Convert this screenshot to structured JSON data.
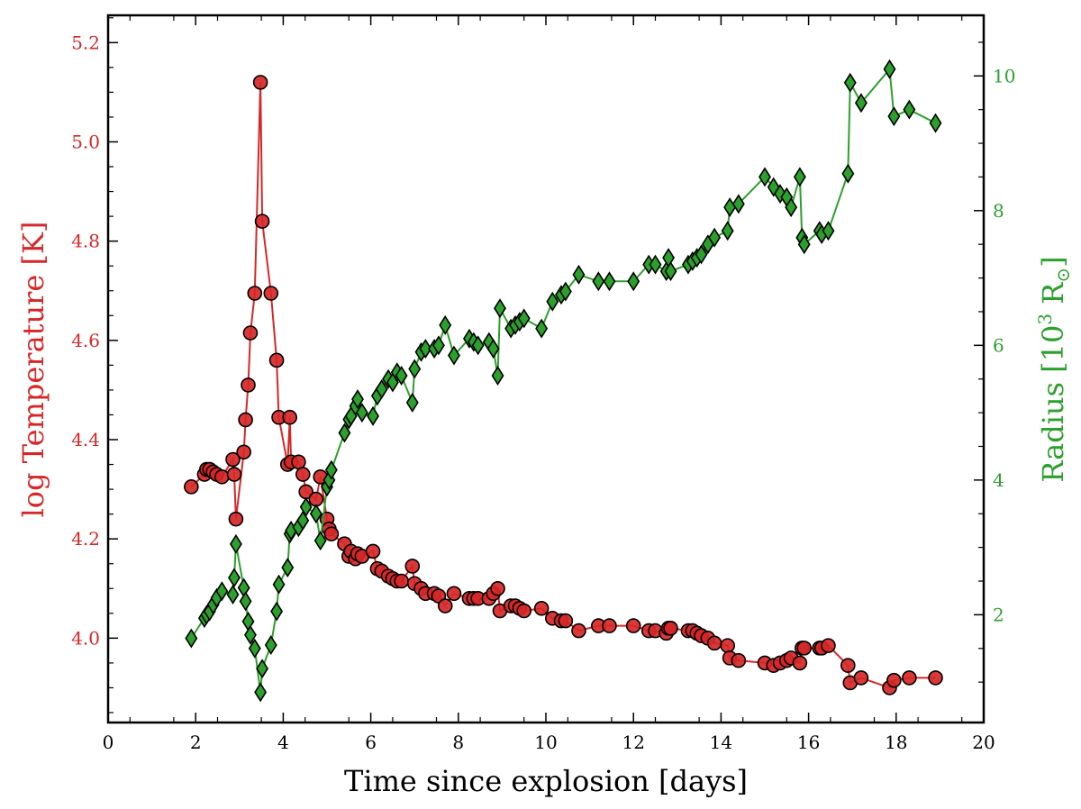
{
  "chart_data": {
    "type": "line",
    "xlabel": "Time since explosion [days]",
    "ylabel_left": "log Temperature [K]",
    "ylabel_right": "Radius [10",
    "ylabel_right_sup": "3",
    "ylabel_right_unit": " R",
    "ylabel_right_sub": "⊙",
    "ylabel_right_close": "]",
    "xlim": [
      0,
      20
    ],
    "ylim_left": [
      3.83,
      5.255
    ],
    "ylim_right": [
      0.4,
      10.9
    ],
    "xticks": [
      "0",
      "2",
      "4",
      "6",
      "8",
      "10",
      "12",
      "14",
      "16",
      "18",
      "20"
    ],
    "yticks_left": [
      "4.0",
      "4.2",
      "4.4",
      "4.6",
      "4.8",
      "5.0",
      "5.2"
    ],
    "yticks_right": [
      "2",
      "4",
      "6",
      "8",
      "10"
    ],
    "colors": {
      "temperature": "#d62728",
      "temperature_left_label": "#d62728",
      "radius": "#2ca02c",
      "radius_label": "#2ca02c",
      "edge": "#000000"
    },
    "series": [
      {
        "name": "Temperature",
        "axis": "left",
        "marker": "circle",
        "points": [
          [
            1.9,
            4.305
          ],
          [
            2.2,
            4.33
          ],
          [
            2.25,
            4.34
          ],
          [
            2.32,
            4.34
          ],
          [
            2.4,
            4.335
          ],
          [
            2.48,
            4.33
          ],
          [
            2.6,
            4.325
          ],
          [
            2.85,
            4.36
          ],
          [
            2.88,
            4.33
          ],
          [
            2.92,
            4.24
          ],
          [
            3.1,
            4.375
          ],
          [
            3.14,
            4.44
          ],
          [
            3.2,
            4.51
          ],
          [
            3.25,
            4.615
          ],
          [
            3.35,
            4.695
          ],
          [
            3.48,
            5.12
          ],
          [
            3.52,
            4.84
          ],
          [
            3.72,
            4.695
          ],
          [
            3.85,
            4.56
          ],
          [
            3.9,
            4.445
          ],
          [
            4.1,
            4.35
          ],
          [
            4.15,
            4.445
          ],
          [
            4.18,
            4.355
          ],
          [
            4.35,
            4.355
          ],
          [
            4.45,
            4.33
          ],
          [
            4.52,
            4.295
          ],
          [
            4.75,
            4.28
          ],
          [
            4.85,
            4.325
          ],
          [
            5.0,
            4.24
          ],
          [
            5.05,
            4.22
          ],
          [
            5.1,
            4.21
          ],
          [
            5.4,
            4.19
          ],
          [
            5.5,
            4.165
          ],
          [
            5.55,
            4.175
          ],
          [
            5.65,
            4.16
          ],
          [
            5.7,
            4.17
          ],
          [
            5.8,
            4.165
          ],
          [
            6.05,
            4.175
          ],
          [
            6.15,
            4.14
          ],
          [
            6.25,
            4.135
          ],
          [
            6.4,
            4.125
          ],
          [
            6.5,
            4.12
          ],
          [
            6.6,
            4.115
          ],
          [
            6.7,
            4.115
          ],
          [
            6.95,
            4.145
          ],
          [
            7.0,
            4.11
          ],
          [
            7.15,
            4.1
          ],
          [
            7.25,
            4.09
          ],
          [
            7.45,
            4.09
          ],
          [
            7.55,
            4.085
          ],
          [
            7.7,
            4.065
          ],
          [
            7.9,
            4.09
          ],
          [
            8.25,
            4.08
          ],
          [
            8.35,
            4.08
          ],
          [
            8.45,
            4.08
          ],
          [
            8.7,
            4.08
          ],
          [
            8.8,
            4.09
          ],
          [
            8.9,
            4.1
          ],
          [
            8.95,
            4.055
          ],
          [
            9.2,
            4.065
          ],
          [
            9.3,
            4.065
          ],
          [
            9.4,
            4.06
          ],
          [
            9.5,
            4.055
          ],
          [
            9.9,
            4.06
          ],
          [
            10.15,
            4.04
          ],
          [
            10.35,
            4.035
          ],
          [
            10.45,
            4.035
          ],
          [
            10.75,
            4.015
          ],
          [
            11.2,
            4.025
          ],
          [
            11.45,
            4.025
          ],
          [
            12.0,
            4.025
          ],
          [
            12.35,
            4.015
          ],
          [
            12.5,
            4.015
          ],
          [
            12.75,
            4.01
          ],
          [
            12.8,
            4.02
          ],
          [
            12.85,
            4.02
          ],
          [
            13.25,
            4.015
          ],
          [
            13.35,
            4.015
          ],
          [
            13.45,
            4.01
          ],
          [
            13.55,
            4.005
          ],
          [
            13.7,
            4.0
          ],
          [
            13.85,
            3.99
          ],
          [
            14.15,
            3.985
          ],
          [
            14.2,
            3.96
          ],
          [
            14.4,
            3.955
          ],
          [
            15.0,
            3.95
          ],
          [
            15.2,
            3.945
          ],
          [
            15.35,
            3.95
          ],
          [
            15.5,
            3.955
          ],
          [
            15.6,
            3.96
          ],
          [
            15.8,
            3.95
          ],
          [
            15.85,
            3.98
          ],
          [
            15.9,
            3.98
          ],
          [
            16.25,
            3.98
          ],
          [
            16.3,
            3.98
          ],
          [
            16.45,
            3.985
          ],
          [
            16.9,
            3.945
          ],
          [
            16.95,
            3.91
          ],
          [
            17.2,
            3.92
          ],
          [
            17.85,
            3.9
          ],
          [
            17.95,
            3.915
          ],
          [
            18.3,
            3.92
          ],
          [
            18.9,
            3.92
          ]
        ]
      },
      {
        "name": "Radius",
        "axis": "right",
        "marker": "diamond",
        "points": [
          [
            1.9,
            1.65
          ],
          [
            2.2,
            1.95
          ],
          [
            2.25,
            2.0
          ],
          [
            2.32,
            2.05
          ],
          [
            2.4,
            2.15
          ],
          [
            2.48,
            2.25
          ],
          [
            2.6,
            2.35
          ],
          [
            2.85,
            2.3
          ],
          [
            2.88,
            2.55
          ],
          [
            2.92,
            3.05
          ],
          [
            3.1,
            2.4
          ],
          [
            3.14,
            2.2
          ],
          [
            3.2,
            1.9
          ],
          [
            3.25,
            1.7
          ],
          [
            3.35,
            1.5
          ],
          [
            3.48,
            0.85
          ],
          [
            3.52,
            1.2
          ],
          [
            3.72,
            1.55
          ],
          [
            3.85,
            2.05
          ],
          [
            3.9,
            2.45
          ],
          [
            4.1,
            2.7
          ],
          [
            4.15,
            3.2
          ],
          [
            4.18,
            3.25
          ],
          [
            4.35,
            3.3
          ],
          [
            4.45,
            3.4
          ],
          [
            4.52,
            3.6
          ],
          [
            4.75,
            3.5
          ],
          [
            4.85,
            3.1
          ],
          [
            5.0,
            3.9
          ],
          [
            5.05,
            4.0
          ],
          [
            5.1,
            4.15
          ],
          [
            5.4,
            4.7
          ],
          [
            5.5,
            4.9
          ],
          [
            5.55,
            4.95
          ],
          [
            5.65,
            5.1
          ],
          [
            5.7,
            5.2
          ],
          [
            5.8,
            5.0
          ],
          [
            6.05,
            4.95
          ],
          [
            6.15,
            5.25
          ],
          [
            6.25,
            5.35
          ],
          [
            6.4,
            5.5
          ],
          [
            6.5,
            5.45
          ],
          [
            6.6,
            5.6
          ],
          [
            6.7,
            5.55
          ],
          [
            6.95,
            5.15
          ],
          [
            7.0,
            5.65
          ],
          [
            7.15,
            5.9
          ],
          [
            7.25,
            5.95
          ],
          [
            7.45,
            5.95
          ],
          [
            7.55,
            6.0
          ],
          [
            7.7,
            6.3
          ],
          [
            7.9,
            5.85
          ],
          [
            8.25,
            6.1
          ],
          [
            8.35,
            6.05
          ],
          [
            8.45,
            6.0
          ],
          [
            8.7,
            6.05
          ],
          [
            8.8,
            5.95
          ],
          [
            8.9,
            5.55
          ],
          [
            8.95,
            6.55
          ],
          [
            9.2,
            6.25
          ],
          [
            9.3,
            6.3
          ],
          [
            9.4,
            6.35
          ],
          [
            9.5,
            6.4
          ],
          [
            9.9,
            6.25
          ],
          [
            10.15,
            6.65
          ],
          [
            10.35,
            6.75
          ],
          [
            10.45,
            6.8
          ],
          [
            10.75,
            7.05
          ],
          [
            11.2,
            6.95
          ],
          [
            11.45,
            6.95
          ],
          [
            12.0,
            6.95
          ],
          [
            12.35,
            7.2
          ],
          [
            12.5,
            7.2
          ],
          [
            12.75,
            7.1
          ],
          [
            12.8,
            7.3
          ],
          [
            12.85,
            7.1
          ],
          [
            13.25,
            7.2
          ],
          [
            13.35,
            7.25
          ],
          [
            13.45,
            7.3
          ],
          [
            13.55,
            7.35
          ],
          [
            13.7,
            7.5
          ],
          [
            13.85,
            7.6
          ],
          [
            14.15,
            7.7
          ],
          [
            14.2,
            8.05
          ],
          [
            14.4,
            8.1
          ],
          [
            15.0,
            8.5
          ],
          [
            15.2,
            8.35
          ],
          [
            15.35,
            8.25
          ],
          [
            15.5,
            8.2
          ],
          [
            15.6,
            8.05
          ],
          [
            15.8,
            8.5
          ],
          [
            15.85,
            7.6
          ],
          [
            15.9,
            7.5
          ],
          [
            16.25,
            7.7
          ],
          [
            16.3,
            7.65
          ],
          [
            16.45,
            7.7
          ],
          [
            16.9,
            8.55
          ],
          [
            16.95,
            9.9
          ],
          [
            17.2,
            9.6
          ],
          [
            17.85,
            10.1
          ],
          [
            17.95,
            9.4
          ],
          [
            18.3,
            9.5
          ],
          [
            18.9,
            9.3
          ]
        ]
      }
    ]
  }
}
